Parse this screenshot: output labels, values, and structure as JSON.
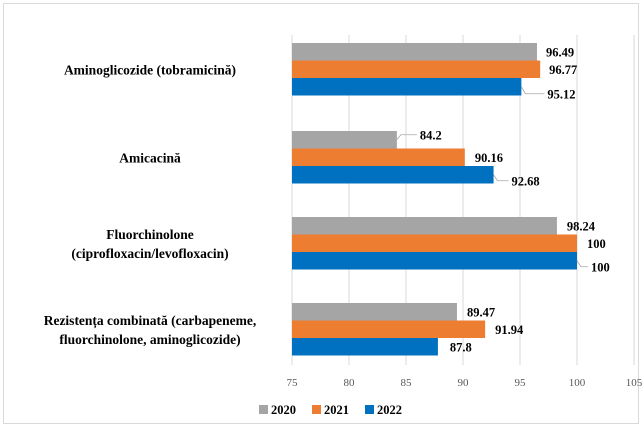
{
  "chart_data": {
    "type": "bar",
    "orientation": "horizontal",
    "categories": [
      "Aminoglicozide (tobramicină)",
      "Amicacină",
      "Fluorchinolone (ciprofloxacin/levofloxacin)",
      "Rezistența combinată (carbapeneme, fluorchinolone, aminoglicozide)"
    ],
    "category_lines": [
      [
        "Aminoglicozide (tobramicină)"
      ],
      [
        "Amicacină"
      ],
      [
        "Fluorchinolone",
        "(ciprofloxacin/levofloxacin)"
      ],
      [
        "Rezistența combinată (carbapeneme,",
        "fluorchinolone, aminoglicozide)"
      ]
    ],
    "series": [
      {
        "name": "2020",
        "color": "#a5a5a5",
        "values": [
          96.49,
          84.2,
          98.24,
          89.47
        ],
        "labels": [
          "96.49",
          "84.2",
          "98.24",
          "89.47"
        ]
      },
      {
        "name": "2021",
        "color": "#ed7d31",
        "values": [
          96.77,
          90.16,
          100,
          91.94
        ],
        "labels": [
          "96.77",
          "90.16",
          "100",
          "91.94"
        ]
      },
      {
        "name": "2022",
        "color": "#0070c0",
        "values": [
          95.12,
          92.68,
          100,
          87.8
        ],
        "labels": [
          "95.12",
          "92.68",
          "100",
          "87.8"
        ]
      }
    ],
    "xlim": [
      75,
      105
    ],
    "xticks": [
      "75",
      "80",
      "85",
      "90",
      "95",
      "100",
      "105"
    ],
    "xtick_values": [
      75,
      80,
      85,
      90,
      95,
      100,
      105
    ],
    "title": "",
    "xlabel": "",
    "ylabel": "",
    "grid": true,
    "legend": "bottom-left"
  }
}
